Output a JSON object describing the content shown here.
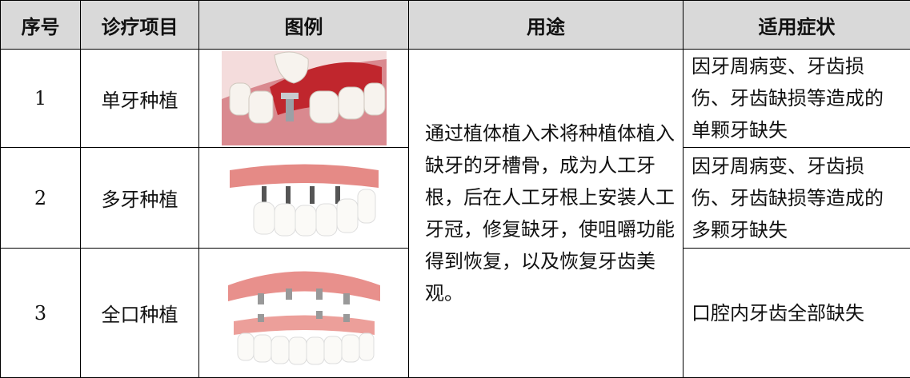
{
  "table": {
    "header": [
      "序号",
      "诊疗项目",
      "图例",
      "用途",
      "适用症状"
    ],
    "rows": [
      {
        "no": "1",
        "name": "单牙种植",
        "symptom": "因牙周病变、牙齿损伤、牙齿缺损等造成的单颗牙缺失"
      },
      {
        "no": "2",
        "name": "多牙种植",
        "symptom": "因牙周病变、牙齿损伤、牙齿缺损等造成的多颗牙缺失"
      },
      {
        "no": "3",
        "name": "全口种植",
        "symptom": "口腔内牙齿全部缺失"
      }
    ],
    "usage": "通过植体植入术将种植体植入缺牙的牙槽骨，成为人工牙根，后在人工牙根上安装人工牙冠，修复缺牙，使咀嚼功能得到恢复，以及恢复牙齿美观。"
  }
}
